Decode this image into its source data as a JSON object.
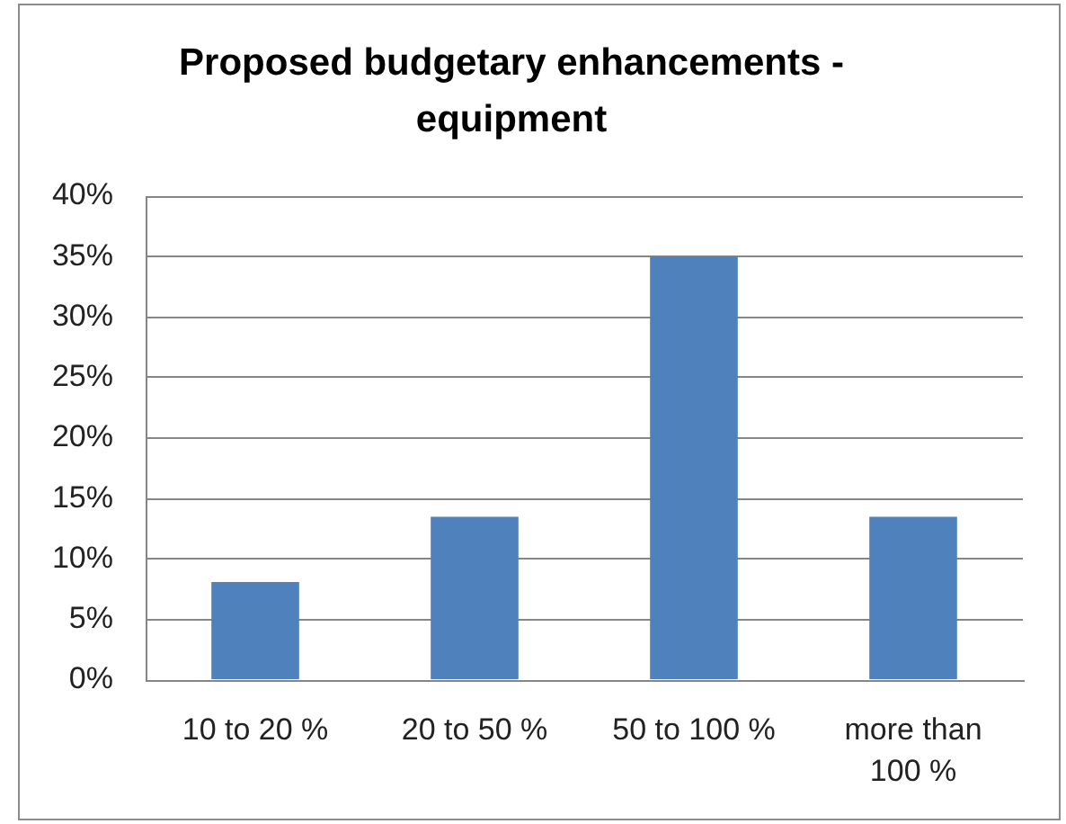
{
  "chart_data": {
    "type": "bar",
    "title": "Proposed budgetary enhancements - equipment",
    "categories": [
      "10 to 20 %",
      "20 to 50 %",
      "50 to 100 %",
      "more than 100 %"
    ],
    "values": [
      8.1,
      13.5,
      35,
      13.5
    ],
    "color": "#4f81bd",
    "ylim": [
      0,
      40
    ],
    "yticks": [
      {
        "value": 0,
        "label": "0%"
      },
      {
        "value": 5,
        "label": "5%"
      },
      {
        "value": 10,
        "label": "10%"
      },
      {
        "value": 15,
        "label": "15%"
      },
      {
        "value": 20,
        "label": "20%"
      },
      {
        "value": 25,
        "label": "25%"
      },
      {
        "value": 30,
        "label": "30%"
      },
      {
        "value": 35,
        "label": "35%"
      },
      {
        "value": 40,
        "label": "40%"
      }
    ],
    "grid": "y"
  }
}
